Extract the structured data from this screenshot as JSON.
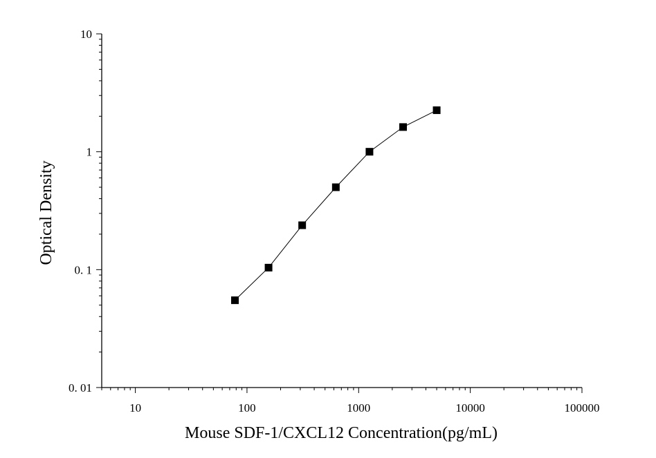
{
  "chart_data": {
    "type": "scatter",
    "title": "",
    "xlabel": "Mouse SDF-1/CXCL12 Concentration(pg/mL)",
    "ylabel": "Optical Density",
    "x_scale": "log",
    "y_scale": "log",
    "xlim": [
      5,
      100000
    ],
    "ylim": [
      0.01,
      10
    ],
    "x_ticks": [
      10,
      100,
      1000,
      10000,
      100000
    ],
    "x_tick_labels": [
      "10",
      "100",
      "1000",
      "10000",
      "100000"
    ],
    "y_ticks": [
      0.01,
      0.1,
      1,
      10
    ],
    "y_tick_labels": [
      "0. 01",
      "0. 1",
      "1",
      "10"
    ],
    "grid": false,
    "series": [
      {
        "x": [
          78,
          156,
          312,
          625,
          1250,
          2500,
          5000
        ],
        "y": [
          0.055,
          0.104,
          0.238,
          0.5,
          1.0,
          1.62,
          2.25
        ],
        "marker": "square",
        "connected": true,
        "color": "#000000"
      }
    ]
  }
}
